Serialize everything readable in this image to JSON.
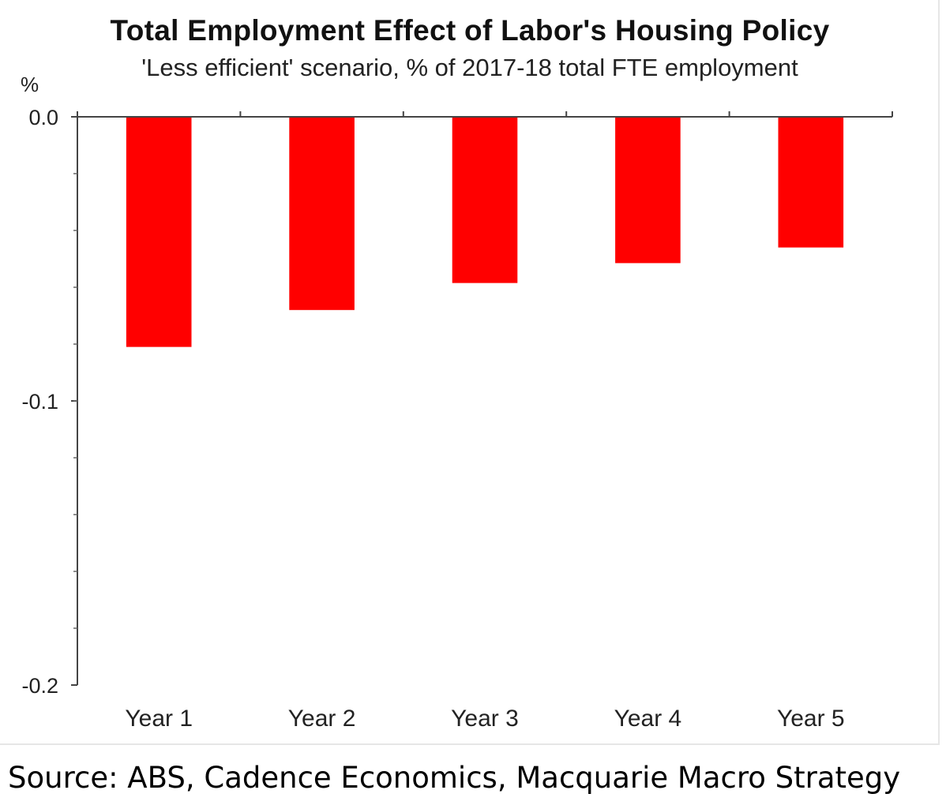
{
  "chart_data": {
    "type": "bar",
    "title": "Total Employment Effect of Labor's Housing Policy",
    "subtitle": "'Less efficient' scenario, % of 2017-18 total FTE employment",
    "ylabel": "%",
    "xlabel": "",
    "categories": [
      "Year 1",
      "Year 2",
      "Year 3",
      "Year 4",
      "Year 5"
    ],
    "values": [
      -0.081,
      -0.068,
      -0.0585,
      -0.0515,
      -0.046
    ],
    "ylim": [
      -0.2,
      0.0
    ],
    "yticks": [
      0.0,
      -0.1,
      -0.2
    ],
    "ytick_labels": [
      "0.0",
      "-0.1",
      "-0.2"
    ],
    "bar_color": "#ff0000",
    "grid": false,
    "legend": "none"
  },
  "source": "Source: ABS, Cadence Economics, Macquarie Macro Strategy"
}
